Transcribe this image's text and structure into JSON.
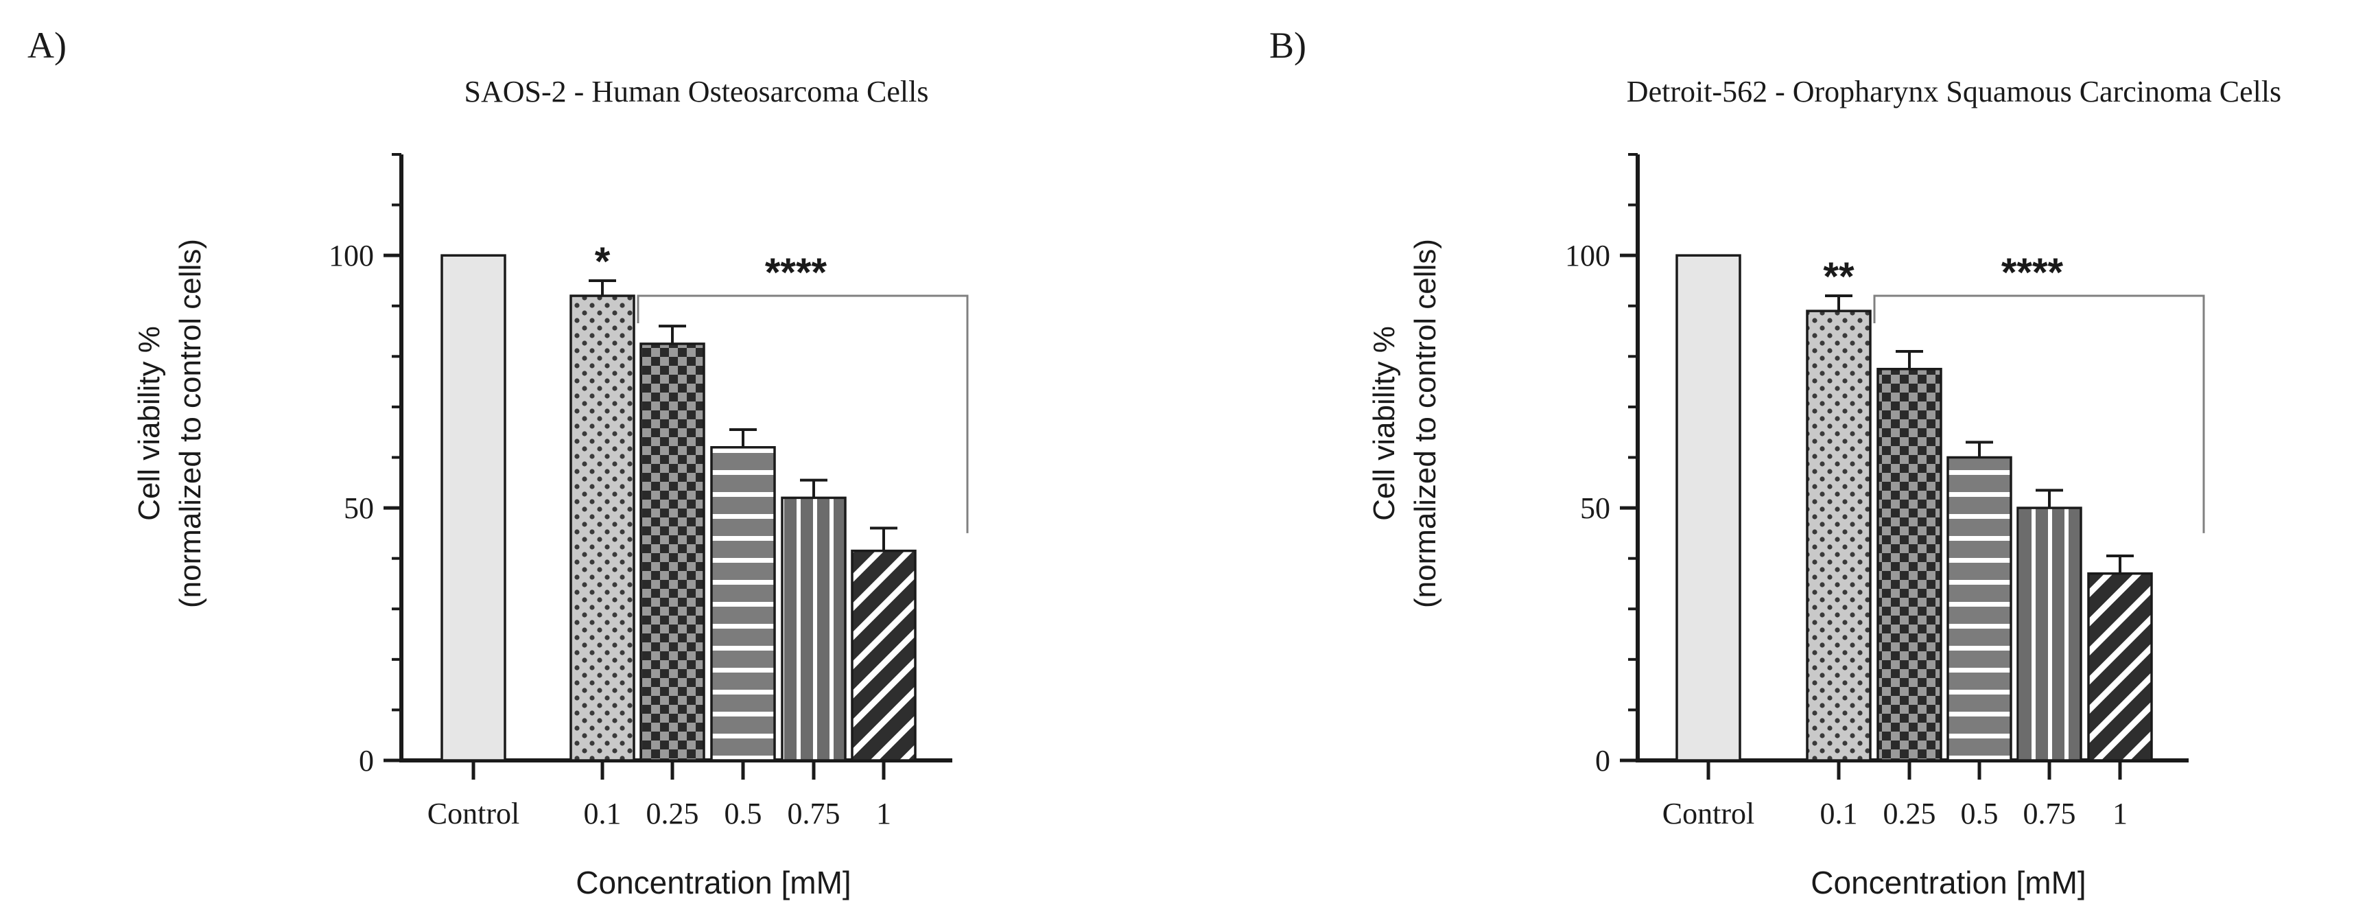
{
  "figure": {
    "panels": [
      "A)",
      "B)"
    ]
  },
  "colors": {
    "axis": "#1a1a1a",
    "control_fill": "#e6e6e6",
    "bar_fill_light": "#c8c8c8",
    "bar_fill_dark": "#2b2b2b",
    "bar_fill_mid": "#7a7a7a",
    "bracket": "#808080",
    "background": "#ffffff"
  },
  "chart_data": [
    {
      "panel_label": "A)",
      "type": "bar",
      "title": "SAOS-2 - Human Osteosarcoma Cells",
      "xlabel": "Concentration [mM]",
      "ylabel_line1": "Cell viability %",
      "ylabel_line2": "(normalized to control cells)",
      "categories": [
        "Control",
        "0.1",
        "0.25",
        "0.5",
        "0.75",
        "1"
      ],
      "values": [
        100,
        92,
        82.5,
        62,
        52,
        41.5
      ],
      "errors": [
        0,
        3,
        3.5,
        3.5,
        3.5,
        4.5
      ],
      "patterns": [
        "solid",
        "dots",
        "checker",
        "hstripes",
        "vstripes",
        "diagonal"
      ],
      "ylim": [
        0,
        120
      ],
      "yticks": [
        0,
        50,
        100
      ],
      "ytick_labels": [
        "0",
        "50",
        "100"
      ],
      "annotations": [
        {
          "text": "*",
          "category_index": 1
        },
        {
          "text": "****",
          "bracket_from": 1,
          "bracket_to": 5,
          "bracket_level": 92,
          "bracket_end": 45
        }
      ]
    },
    {
      "panel_label": "B)",
      "type": "bar",
      "title": "Detroit-562 - Oropharynx Squamous Carcinoma Cells",
      "xlabel": "Concentration [mM]",
      "ylabel_line1": "Cell viability %",
      "ylabel_line2": "(normalized to control cells)",
      "categories": [
        "Control",
        "0.1",
        "0.25",
        "0.5",
        "0.75",
        "1"
      ],
      "values": [
        100,
        89,
        77.5,
        60,
        50,
        37
      ],
      "errors": [
        0,
        3,
        3.5,
        3,
        3.5,
        3.5
      ],
      "patterns": [
        "solid",
        "dots",
        "checker",
        "hstripes",
        "vstripes",
        "diagonal"
      ],
      "ylim": [
        0,
        120
      ],
      "yticks": [
        0,
        50,
        100
      ],
      "ytick_labels": [
        "0",
        "50",
        "100"
      ],
      "annotations": [
        {
          "text": "**",
          "category_index": 1
        },
        {
          "text": "****",
          "bracket_from": 1,
          "bracket_to": 5,
          "bracket_level": 92,
          "bracket_end": 45
        }
      ]
    }
  ]
}
